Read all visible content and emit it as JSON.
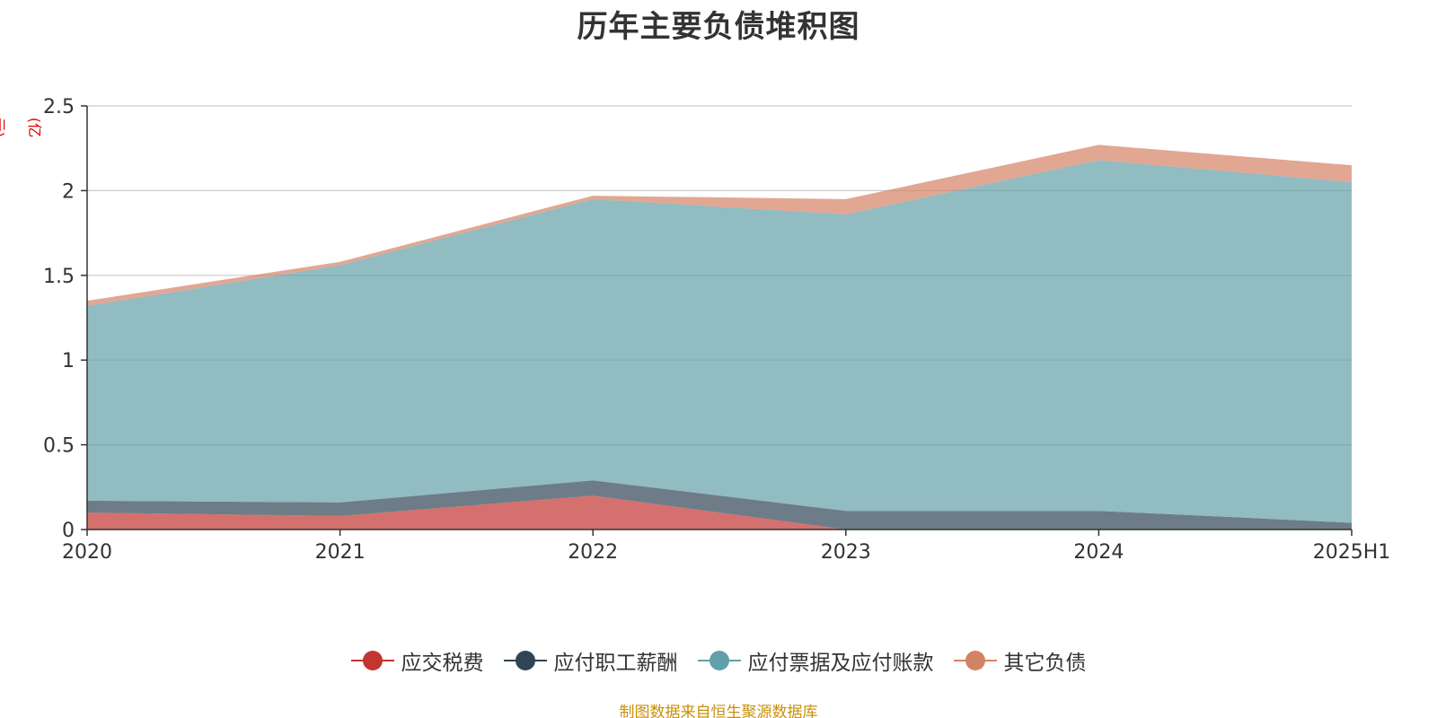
{
  "chart_data": {
    "type": "area",
    "stacked": true,
    "title": "历年主要负债堆积图",
    "y_unit": "(亿元)",
    "categories": [
      "2020",
      "2021",
      "2022",
      "2023",
      "2024",
      "2025H1"
    ],
    "ylim": [
      0,
      2.5
    ],
    "yticks": [
      0,
      0.5,
      1,
      1.5,
      2,
      2.5
    ],
    "ytick_labels": [
      "0",
      "0.5",
      "1",
      "1.5",
      "2",
      "2.5"
    ],
    "grid": true,
    "legend_position": "bottom-center",
    "series": [
      {
        "name": "应交税费",
        "values": [
          0.1,
          0.08,
          0.2,
          0.0,
          0.0,
          0.0
        ],
        "color": "#c23531"
      },
      {
        "name": "应付职工薪酬",
        "values": [
          0.07,
          0.08,
          0.09,
          0.11,
          0.11,
          0.04
        ],
        "color": "#2f4554"
      },
      {
        "name": "应付票据及应付账款",
        "values": [
          1.15,
          1.4,
          1.66,
          1.75,
          2.07,
          2.01
        ],
        "color": "#61a0a8"
      },
      {
        "name": "其它负债",
        "values": [
          0.03,
          0.02,
          0.02,
          0.09,
          0.09,
          0.1
        ],
        "color": "#d48265"
      }
    ]
  },
  "source_note": "制图数据来自恒生聚源数据库"
}
